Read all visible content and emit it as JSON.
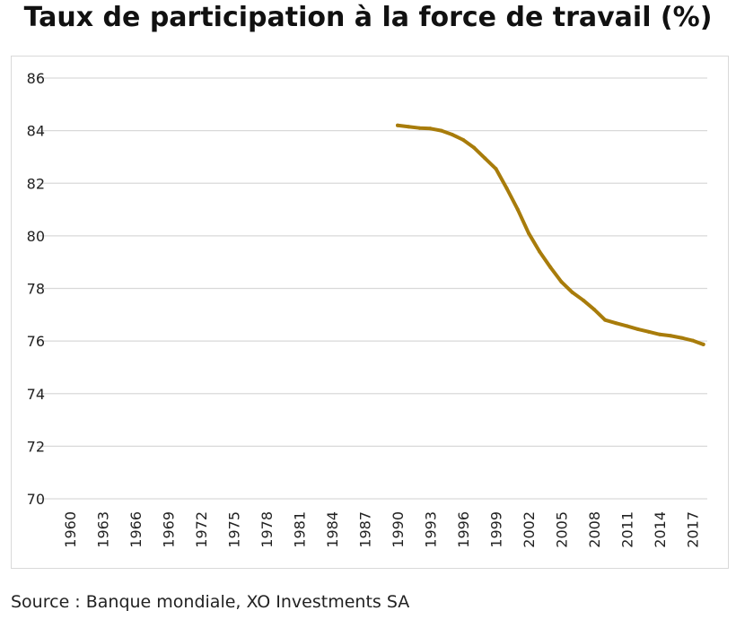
{
  "title": "Taux de participation à la force de travail (%)",
  "source": "Source : Banque mondiale, XO Investments SA",
  "colors": {
    "line": "#A87C0B",
    "grid": "#d9d9d9",
    "text": "#222222"
  },
  "chart_data": {
    "type": "line",
    "title": "Taux de participation à la force de travail (%)",
    "xlabel": "",
    "ylabel": "",
    "ylim": [
      70,
      86
    ],
    "yticks": [
      "70",
      "72",
      "74",
      "76",
      "78",
      "80",
      "82",
      "84",
      "86"
    ],
    "xlim": [
      1960,
      2019
    ],
    "xticks": [
      "1960",
      "1963",
      "1966",
      "1969",
      "1972",
      "1975",
      "1978",
      "1981",
      "1984",
      "1987",
      "1990",
      "1993",
      "1996",
      "1999",
      "2002",
      "2005",
      "2008",
      "2011",
      "2014",
      "2017"
    ],
    "grid": "horizontal",
    "series": [
      {
        "x": [
          1990,
          1991,
          1992,
          1993,
          1994,
          1995,
          1996,
          1997,
          1998,
          1999,
          2000,
          2001,
          2002,
          2003,
          2004,
          2005,
          2006,
          2007,
          2008,
          2009,
          2010,
          2011,
          2012,
          2013,
          2014,
          2015,
          2016,
          2017,
          2018
        ],
        "values": [
          84.2,
          84.15,
          84.1,
          84.08,
          84.0,
          83.85,
          83.65,
          83.35,
          82.95,
          82.55,
          81.8,
          81.0,
          80.1,
          79.4,
          78.8,
          78.25,
          77.85,
          77.55,
          77.2,
          76.8,
          76.68,
          76.57,
          76.45,
          76.35,
          76.25,
          76.2,
          76.12,
          76.02,
          75.87
        ]
      }
    ]
  }
}
